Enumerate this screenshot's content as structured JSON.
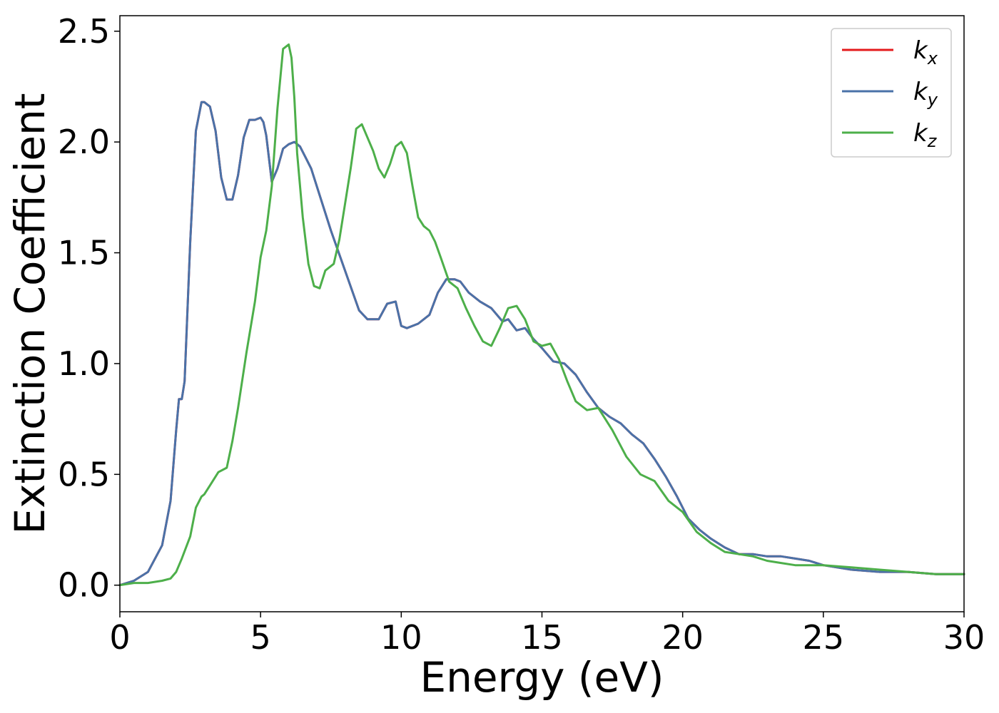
{
  "chart_data": {
    "type": "line",
    "title": "",
    "xlabel": "Energy (eV)",
    "ylabel": "Extinction Coefficient",
    "xlim": [
      0,
      30
    ],
    "ylim": [
      -0.12,
      2.57
    ],
    "xticks": [
      0,
      5,
      10,
      15,
      20,
      25,
      30
    ],
    "xtick_labels": [
      "0",
      "5",
      "10",
      "15",
      "20",
      "25",
      "30"
    ],
    "yticks": [
      0.0,
      0.5,
      1.0,
      1.5,
      2.0,
      2.5
    ],
    "ytick_labels": [
      "0.0",
      "0.5",
      "1.0",
      "1.5",
      "2.0",
      "2.5"
    ],
    "grid": false,
    "legend_position": "top-right",
    "series": [
      {
        "name": "k_x",
        "legend_base": "k",
        "legend_sub": "x",
        "color": "#e41a1c",
        "x": [
          0,
          0.5,
          1.0,
          1.5,
          1.8,
          2.0,
          2.1,
          2.2,
          2.3,
          2.5,
          2.7,
          2.9,
          3.0,
          3.1,
          3.2,
          3.4,
          3.6,
          3.8,
          4.0,
          4.2,
          4.4,
          4.6,
          4.8,
          5.0,
          5.1,
          5.2,
          5.4,
          5.6,
          5.8,
          6.0,
          6.2,
          6.4,
          6.6,
          6.8,
          7.0,
          7.5,
          8.0,
          8.5,
          8.8,
          9.2,
          9.5,
          9.8,
          10.0,
          10.2,
          10.6,
          11.0,
          11.3,
          11.6,
          11.9,
          12.1,
          12.4,
          12.8,
          13.2,
          13.6,
          13.8,
          14.1,
          14.4,
          14.7,
          15.0,
          15.4,
          15.8,
          16.2,
          16.6,
          17.0,
          17.4,
          17.8,
          18.2,
          18.6,
          19.0,
          19.4,
          19.8,
          20.2,
          20.6,
          21.0,
          21.5,
          22.0,
          22.5,
          23.0,
          23.5,
          24.0,
          24.5,
          25.0,
          26.0,
          27.0,
          28.0,
          29.0,
          30.0
        ],
        "values": [
          0.0,
          0.02,
          0.06,
          0.18,
          0.38,
          0.7,
          0.84,
          0.84,
          0.92,
          1.55,
          2.05,
          2.18,
          2.18,
          2.17,
          2.16,
          2.05,
          1.84,
          1.74,
          1.74,
          1.85,
          2.02,
          2.1,
          2.1,
          2.11,
          2.09,
          2.03,
          1.82,
          1.88,
          1.97,
          1.99,
          2.0,
          1.98,
          1.93,
          1.88,
          1.8,
          1.6,
          1.42,
          1.24,
          1.2,
          1.2,
          1.27,
          1.28,
          1.17,
          1.16,
          1.18,
          1.22,
          1.32,
          1.38,
          1.38,
          1.37,
          1.32,
          1.28,
          1.25,
          1.19,
          1.2,
          1.15,
          1.16,
          1.11,
          1.07,
          1.01,
          1.0,
          0.95,
          0.87,
          0.8,
          0.76,
          0.73,
          0.68,
          0.64,
          0.57,
          0.49,
          0.4,
          0.3,
          0.25,
          0.21,
          0.17,
          0.14,
          0.14,
          0.13,
          0.13,
          0.12,
          0.11,
          0.09,
          0.07,
          0.06,
          0.06,
          0.05,
          0.05
        ]
      },
      {
        "name": "k_y",
        "legend_base": "k",
        "legend_sub": "y",
        "color": "#4a72a8",
        "x": [
          0,
          0.5,
          1.0,
          1.5,
          1.8,
          2.0,
          2.1,
          2.2,
          2.3,
          2.5,
          2.7,
          2.9,
          3.0,
          3.1,
          3.2,
          3.4,
          3.6,
          3.8,
          4.0,
          4.2,
          4.4,
          4.6,
          4.8,
          5.0,
          5.1,
          5.2,
          5.4,
          5.6,
          5.8,
          6.0,
          6.2,
          6.4,
          6.6,
          6.8,
          7.0,
          7.5,
          8.0,
          8.5,
          8.8,
          9.2,
          9.5,
          9.8,
          10.0,
          10.2,
          10.6,
          11.0,
          11.3,
          11.6,
          11.9,
          12.1,
          12.4,
          12.8,
          13.2,
          13.6,
          13.8,
          14.1,
          14.4,
          14.7,
          15.0,
          15.4,
          15.8,
          16.2,
          16.6,
          17.0,
          17.4,
          17.8,
          18.2,
          18.6,
          19.0,
          19.4,
          19.8,
          20.2,
          20.6,
          21.0,
          21.5,
          22.0,
          22.5,
          23.0,
          23.5,
          24.0,
          24.5,
          25.0,
          26.0,
          27.0,
          28.0,
          29.0,
          30.0
        ],
        "values": [
          0.0,
          0.02,
          0.06,
          0.18,
          0.38,
          0.7,
          0.84,
          0.84,
          0.92,
          1.55,
          2.05,
          2.18,
          2.18,
          2.17,
          2.16,
          2.05,
          1.84,
          1.74,
          1.74,
          1.85,
          2.02,
          2.1,
          2.1,
          2.11,
          2.09,
          2.03,
          1.82,
          1.88,
          1.97,
          1.99,
          2.0,
          1.98,
          1.93,
          1.88,
          1.8,
          1.6,
          1.42,
          1.24,
          1.2,
          1.2,
          1.27,
          1.28,
          1.17,
          1.16,
          1.18,
          1.22,
          1.32,
          1.38,
          1.38,
          1.37,
          1.32,
          1.28,
          1.25,
          1.19,
          1.2,
          1.15,
          1.16,
          1.11,
          1.07,
          1.01,
          1.0,
          0.95,
          0.87,
          0.8,
          0.76,
          0.73,
          0.68,
          0.64,
          0.57,
          0.49,
          0.4,
          0.3,
          0.25,
          0.21,
          0.17,
          0.14,
          0.14,
          0.13,
          0.13,
          0.12,
          0.11,
          0.09,
          0.07,
          0.06,
          0.06,
          0.05,
          0.05
        ]
      },
      {
        "name": "k_z",
        "legend_base": "k",
        "legend_sub": "z",
        "color": "#4daf4a",
        "x": [
          0,
          0.5,
          1.0,
          1.5,
          1.8,
          2.0,
          2.2,
          2.5,
          2.7,
          2.9,
          3.0,
          3.2,
          3.5,
          3.8,
          4.0,
          4.2,
          4.5,
          4.8,
          5.0,
          5.2,
          5.4,
          5.6,
          5.8,
          6.0,
          6.1,
          6.2,
          6.3,
          6.5,
          6.7,
          6.9,
          7.1,
          7.3,
          7.6,
          7.8,
          8.0,
          8.2,
          8.4,
          8.6,
          8.8,
          9.0,
          9.2,
          9.4,
          9.6,
          9.8,
          10.0,
          10.2,
          10.4,
          10.6,
          10.8,
          11.0,
          11.2,
          11.4,
          11.7,
          12.0,
          12.3,
          12.6,
          12.9,
          13.2,
          13.5,
          13.8,
          14.1,
          14.4,
          14.7,
          15.0,
          15.3,
          15.6,
          15.9,
          16.2,
          16.6,
          17.0,
          17.5,
          18.0,
          18.5,
          19.0,
          19.5,
          20.0,
          20.5,
          21.0,
          21.5,
          22.0,
          22.5,
          23.0,
          23.5,
          24.0,
          24.5,
          25.0,
          26.0,
          27.0,
          28.0,
          29.0,
          30.0
        ],
        "values": [
          0.0,
          0.01,
          0.01,
          0.02,
          0.03,
          0.06,
          0.12,
          0.22,
          0.35,
          0.4,
          0.41,
          0.45,
          0.51,
          0.53,
          0.65,
          0.8,
          1.05,
          1.28,
          1.48,
          1.6,
          1.8,
          2.15,
          2.42,
          2.44,
          2.38,
          2.2,
          1.95,
          1.66,
          1.45,
          1.35,
          1.34,
          1.42,
          1.45,
          1.56,
          1.72,
          1.88,
          2.06,
          2.08,
          2.02,
          1.96,
          1.88,
          1.84,
          1.9,
          1.98,
          2.0,
          1.95,
          1.8,
          1.66,
          1.62,
          1.6,
          1.55,
          1.48,
          1.37,
          1.34,
          1.25,
          1.17,
          1.1,
          1.08,
          1.16,
          1.25,
          1.26,
          1.2,
          1.1,
          1.08,
          1.09,
          1.02,
          0.92,
          0.83,
          0.79,
          0.8,
          0.7,
          0.58,
          0.5,
          0.47,
          0.38,
          0.33,
          0.24,
          0.19,
          0.15,
          0.14,
          0.13,
          0.11,
          0.1,
          0.09,
          0.09,
          0.09,
          0.08,
          0.07,
          0.06,
          0.05,
          0.05
        ]
      }
    ]
  }
}
